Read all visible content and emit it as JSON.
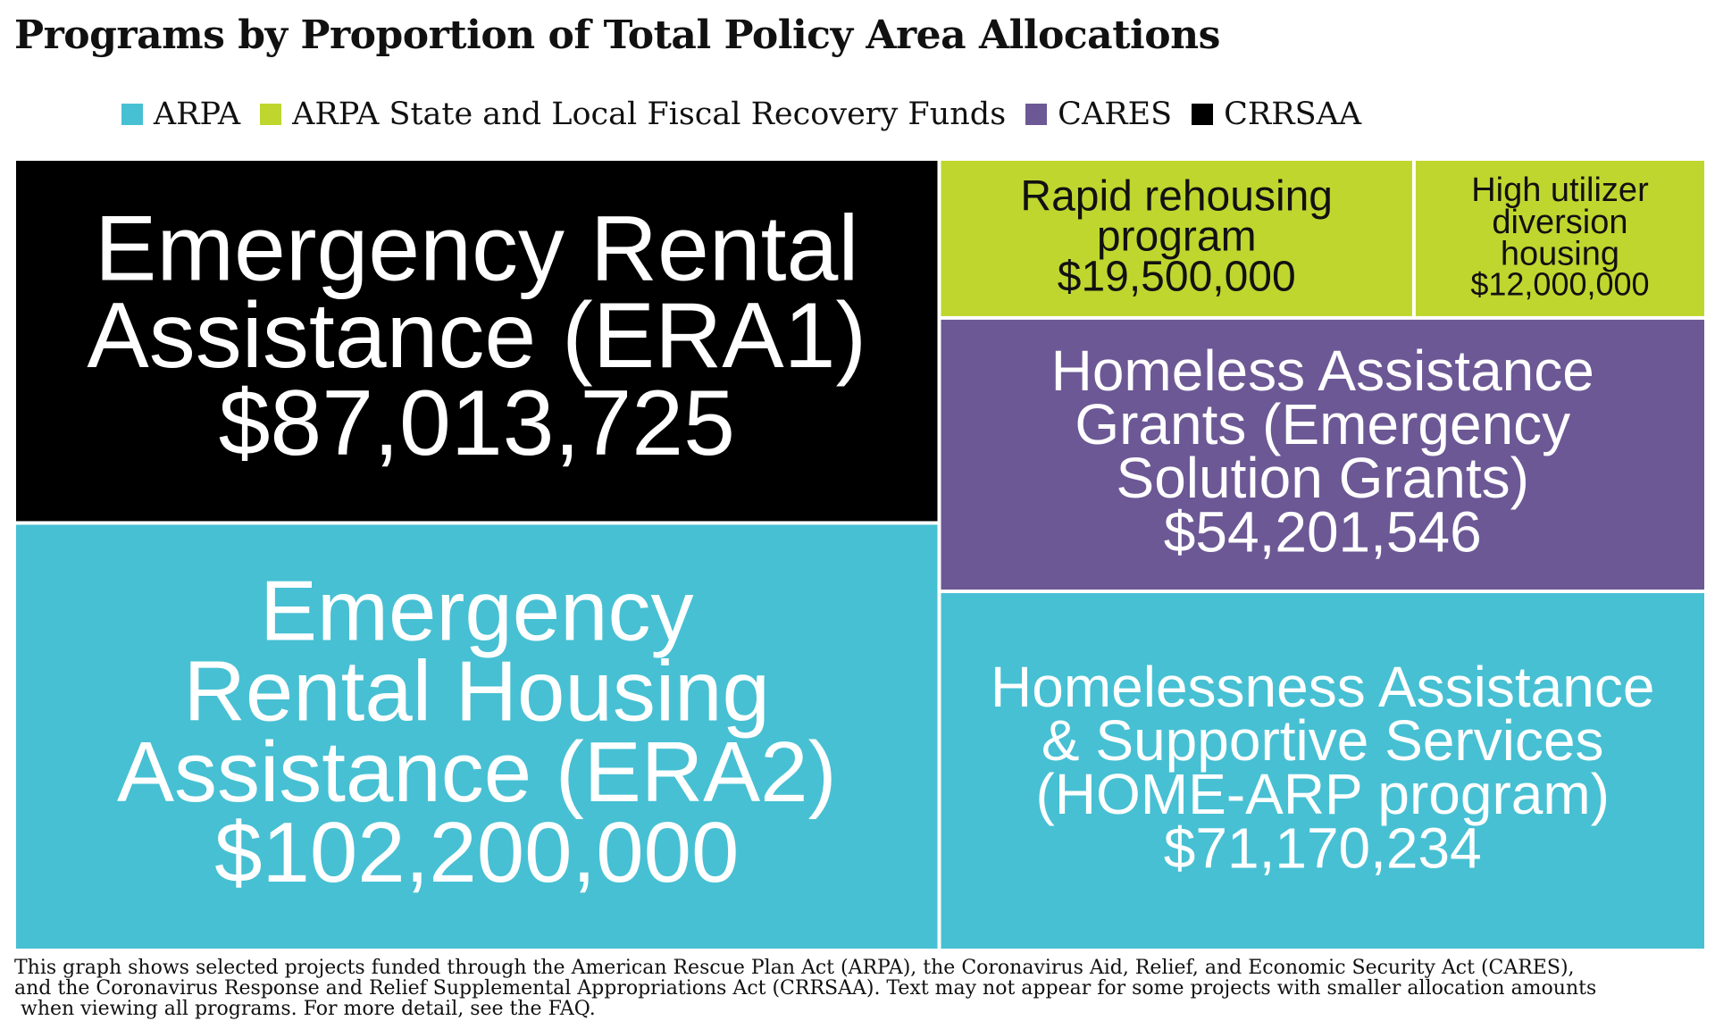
{
  "title": "Programs by Proportion of Total Policy Area Allocations",
  "legend": [
    {
      "label": "ARPA",
      "color": "#47c0d3"
    },
    {
      "label": "ARPA State and Local Fiscal Recovery Funds",
      "color": "#bfd62e"
    },
    {
      "label": "CARES",
      "color": "#6c5895"
    },
    {
      "label": "CRRSAA",
      "color": "#000000"
    }
  ],
  "chart_data": {
    "type": "treemap",
    "title": "Programs by Proportion of Total Policy Area Allocations",
    "categories": [
      "ARPA",
      "ARPA State and Local Fiscal Recovery Funds",
      "CARES",
      "CRRSAA"
    ],
    "items": [
      {
        "name_lines": [
          "Emergency",
          "Rental Housing",
          "Assistance (ERA2)"
        ],
        "value_label": "$102,200,000",
        "value": 102200000,
        "category": "ARPA"
      },
      {
        "name_lines": [
          "Emergency Rental",
          "Assistance (ERA1)"
        ],
        "value_label": "$87,013,725",
        "value": 87013725,
        "category": "CRRSAA"
      },
      {
        "name_lines": [
          "Homelessness Assistance",
          "& Supportive Services",
          "(HOME-ARP program)"
        ],
        "value_label": "$71,170,234",
        "value": 71170234,
        "category": "ARPA"
      },
      {
        "name_lines": [
          "Homeless Assistance",
          "Grants (Emergency",
          "Solution Grants)"
        ],
        "value_label": "$54,201,546",
        "value": 54201546,
        "category": "CARES"
      },
      {
        "name_lines": [
          "Rapid rehousing",
          "program"
        ],
        "value_label": "$19,500,000",
        "value": 19500000,
        "category": "ARPA State and Local Fiscal Recovery Funds"
      },
      {
        "name_lines": [
          "High utilizer",
          "diversion",
          "housing"
        ],
        "value_label": "$12,000,000",
        "value": 12000000,
        "category": "ARPA State and Local Fiscal Recovery Funds"
      }
    ]
  },
  "footnote_lines": [
    "This graph shows selected projects funded through the American Rescue Plan Act (ARPA), the Coronavirus Aid, Relief, and Economic Security Act (CARES),",
    "and the Coronavirus Response and Relief Supplemental Appropriations Act (CRRSAA). Text may not appear for some projects with smaller allocation amounts",
    " when viewing all programs. For more detail, see the FAQ."
  ]
}
